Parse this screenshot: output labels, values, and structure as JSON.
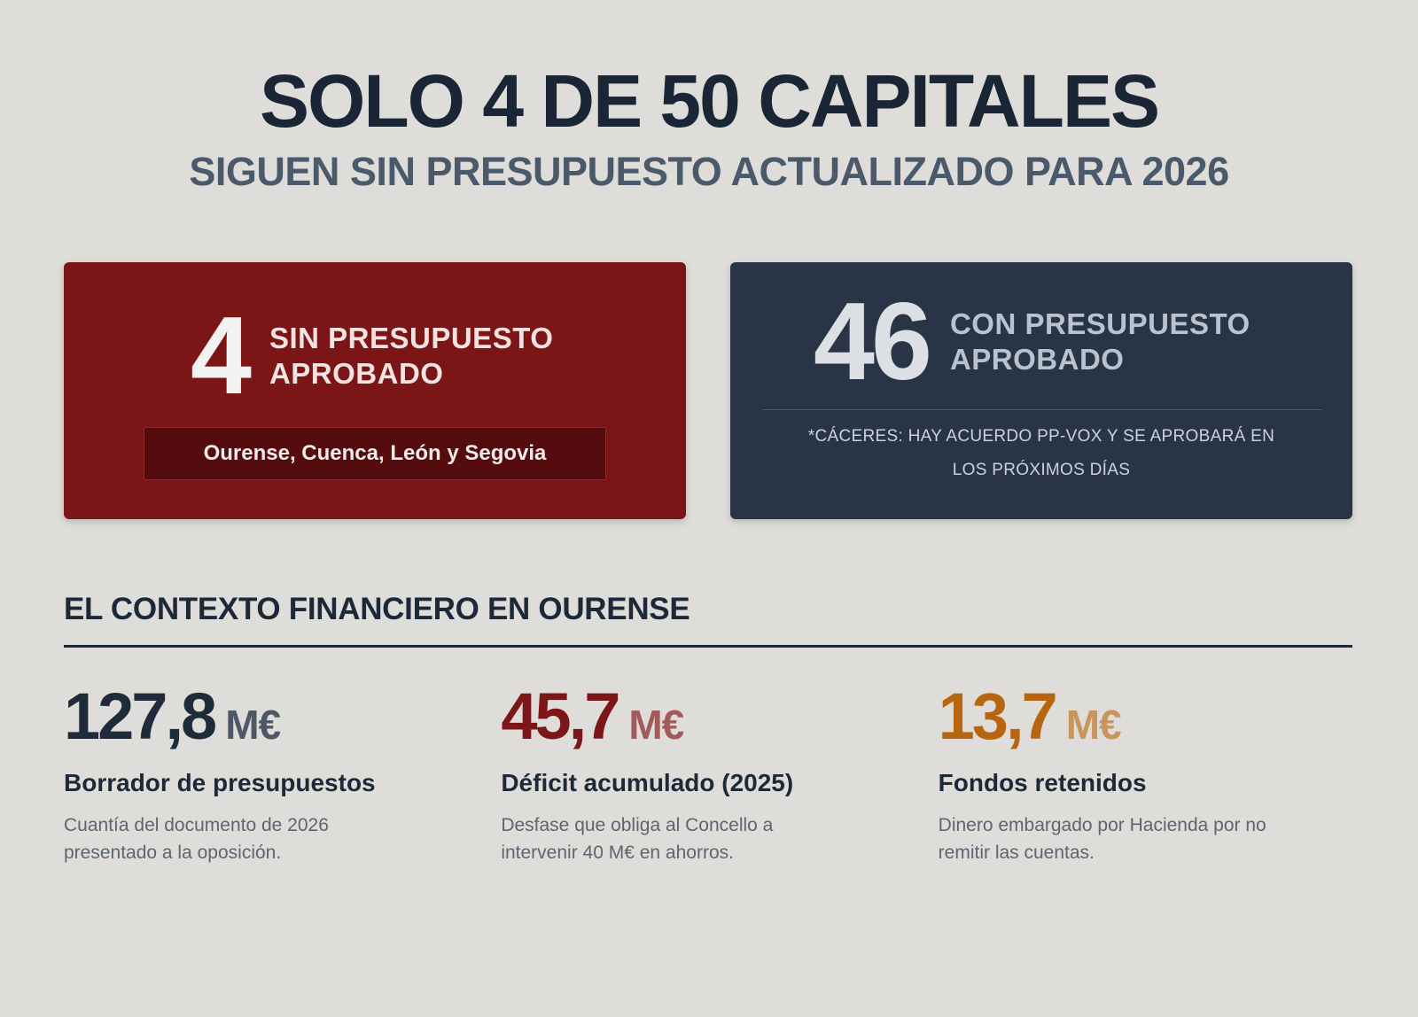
{
  "header": {
    "title": "SOLO 4 DE 50 CAPITALES",
    "subtitle": "SIGUEN SIN PRESUPUESTO ACTUALIZADO PARA 2026"
  },
  "cards": {
    "without_budget": {
      "number": "4",
      "label_line1": "SIN PRESUPUESTO",
      "label_line2": "APROBADO",
      "cities": "Ourense, Cuenca, León y Segovia"
    },
    "with_budget": {
      "number": "46",
      "label_line1": "CON PRESUPUESTO",
      "label_line2": "APROBADO",
      "note_line1": "*CÁCERES: HAY ACUERDO PP-VOX Y SE APROBARÁ EN",
      "note_line2": "LOS PRÓXIMOS DÍAS"
    }
  },
  "context": {
    "title": "EL CONTEXTO FINANCIERO EN OURENSE",
    "stats": [
      {
        "value": "127,8",
        "unit": "M€",
        "label": "Borrador de presupuestos",
        "desc_line1": "Cuantía del documento de 2026",
        "desc_line2": "presentado a la oposición."
      },
      {
        "value": "45,7",
        "unit": "M€",
        "label": "Déficit acumulado (2025)",
        "desc_line1": "Desfase que obliga al Concello a",
        "desc_line2": "intervenir 40 M€ en ahorros."
      },
      {
        "value": "13,7",
        "unit": "M€",
        "label": "Fondos retenidos",
        "desc_line1": "Dinero embargado por Hacienda por no",
        "desc_line2": "remitir las cuentas."
      }
    ]
  },
  "colors": {
    "background": "#dfddd9",
    "red_card": "#7b1516",
    "navy_card": "#293547",
    "amber": "#b86510"
  }
}
